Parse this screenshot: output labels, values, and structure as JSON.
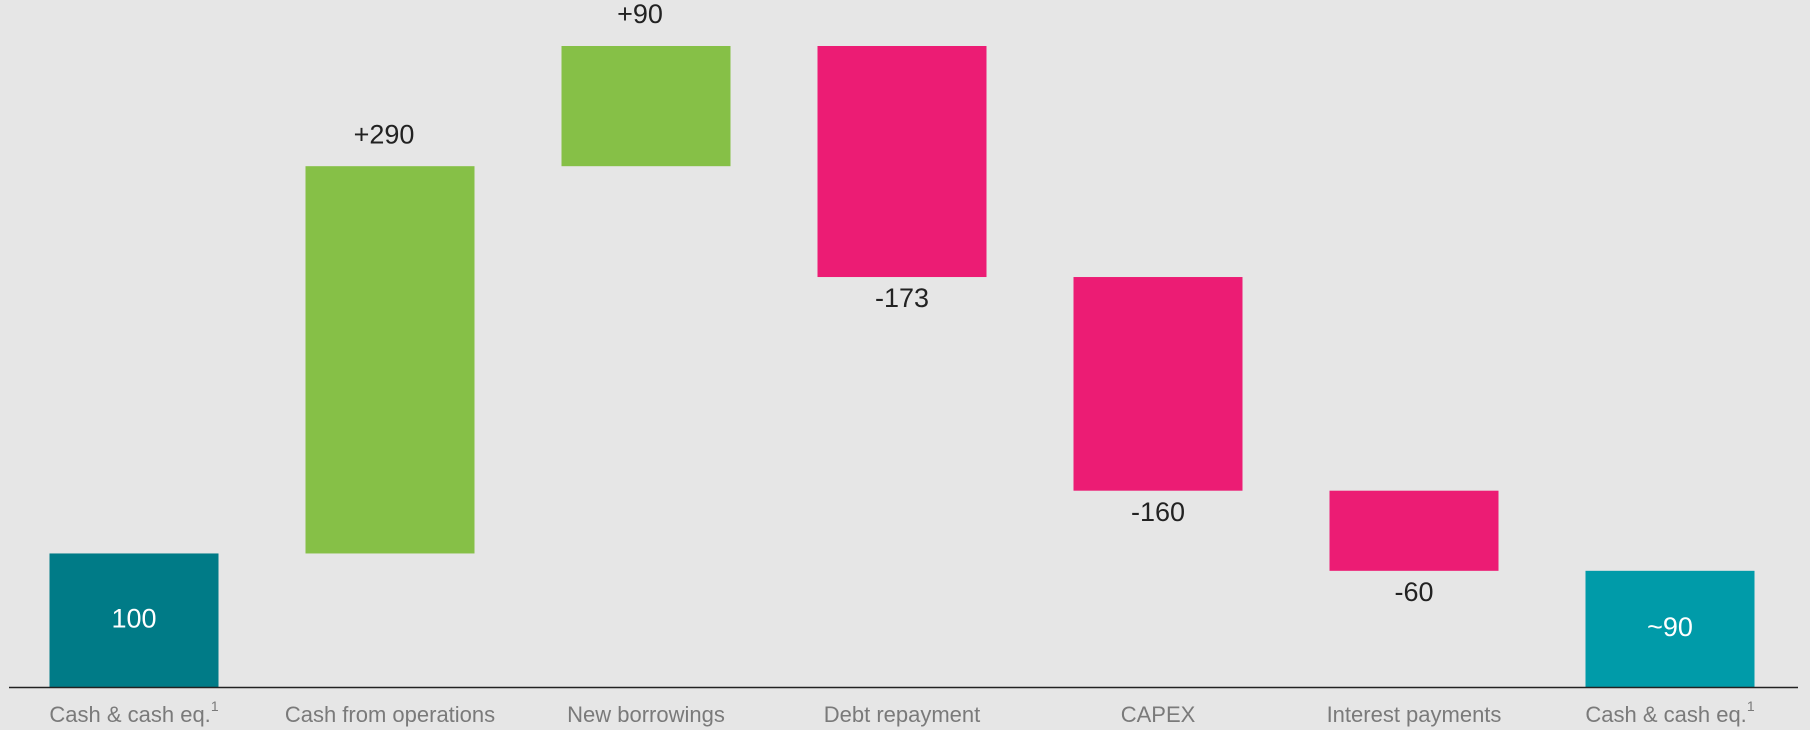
{
  "chart_data": {
    "type": "waterfall",
    "categories": [
      "Cash & cash eq.",
      "Cash from operations",
      "New borrowings",
      "Debt repayment",
      "CAPEX",
      "Interest payments",
      "Cash & cash eq."
    ],
    "category_notes": [
      "1",
      null,
      null,
      null,
      null,
      null,
      "1"
    ],
    "values": [
      100,
      290,
      90,
      -173,
      -160,
      -60,
      87
    ],
    "value_labels": [
      "100",
      "+290",
      "+90",
      "-173",
      "-160",
      "-60",
      "~90"
    ],
    "totals": [
      true,
      false,
      false,
      false,
      false,
      false,
      true
    ],
    "colors": [
      "#007b87",
      "#86c047",
      "#86c047",
      "#ec1c74",
      "#ec1c74",
      "#ec1c74",
      "#009ba9"
    ]
  }
}
